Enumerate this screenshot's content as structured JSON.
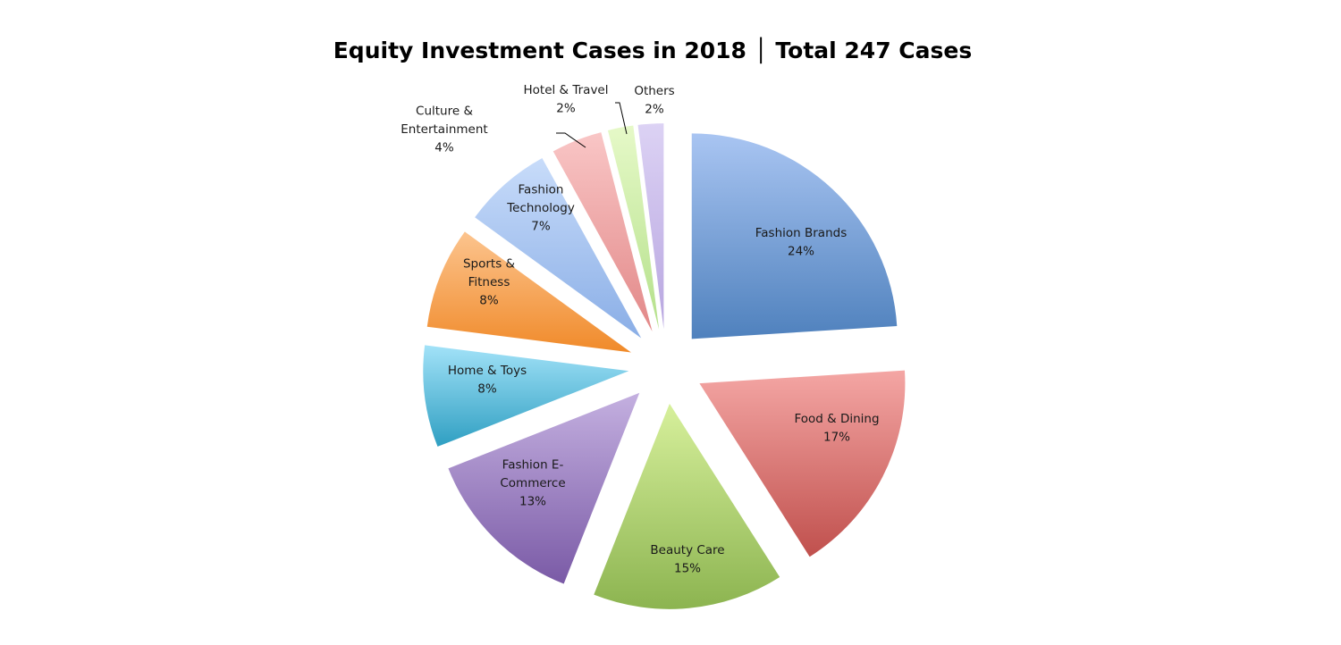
{
  "chart_data": {
    "type": "pie",
    "title": "Equity Investment Cases in 2018 │ Total 247 Cases",
    "slices": [
      {
        "label": "Fashion Brands",
        "value": 24,
        "color": "#4f81bd",
        "light": "#a9c5f2"
      },
      {
        "label": "Food & Dining",
        "value": 17,
        "color": "#c0504d",
        "light": "#f4a6a4"
      },
      {
        "label": "Beauty Care",
        "value": 15,
        "color": "#8cb450",
        "light": "#d7f09c"
      },
      {
        "label": "Fashion E-Commerce",
        "value": 13,
        "color": "#7a5aa6",
        "light": "#c4b0e0"
      },
      {
        "label": "Home & Toys",
        "value": 8,
        "color": "#2f9fc2",
        "light": "#a2e2f8"
      },
      {
        "label": "Sports & Fitness",
        "value": 8,
        "color": "#f08a2a",
        "light": "#fcc48e"
      },
      {
        "label": "Fashion Technology",
        "value": 7,
        "color": "#8aaee6",
        "light": "#c8dcfa"
      },
      {
        "label": "Culture & Entertainment",
        "value": 4,
        "color": "#e28888",
        "light": "#f9c6c6"
      },
      {
        "label": "Hotel & Travel",
        "value": 2,
        "color": "#b4e08a",
        "light": "#e6f9c8"
      },
      {
        "label": "Others",
        "value": 2,
        "color": "#b8a6e0",
        "light": "#dcd2f4"
      }
    ],
    "label_lines": [
      [
        "Fashion Brands",
        "24%"
      ],
      [
        "Food & Dining",
        "17%"
      ],
      [
        "Beauty Care",
        "15%"
      ],
      [
        "Fashion E-",
        "Commerce",
        "13%"
      ],
      [
        "Home  & Toys",
        "8%"
      ],
      [
        "Sports &",
        "Fitness",
        "8%"
      ],
      [
        "Fashion",
        "Technology",
        "7%"
      ],
      [
        "Culture &",
        "Entertainment",
        "4%"
      ],
      [
        "Hotel  & Travel",
        "2%"
      ],
      [
        "Others",
        "2%"
      ]
    ],
    "unit": "%",
    "legend": "none (labels on slices)"
  }
}
